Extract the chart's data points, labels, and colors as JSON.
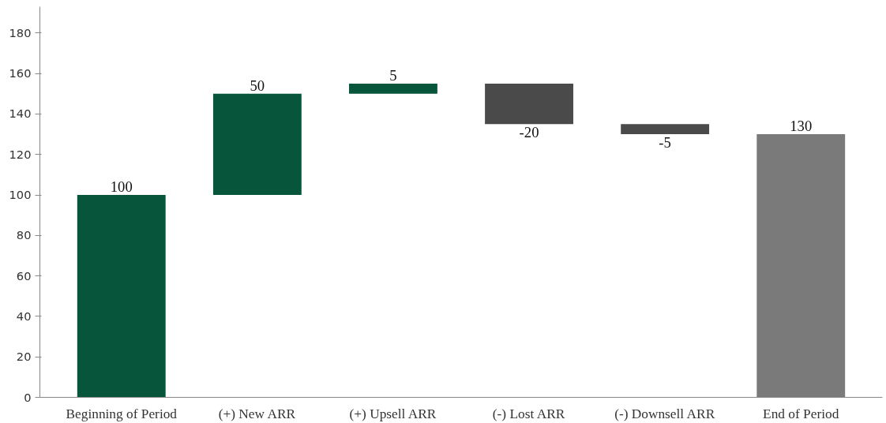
{
  "chart_data": {
    "type": "bar",
    "categories": [
      "Beginning of Period",
      "(+) New ARR",
      "(+) Upsell ARR",
      "(-) Lost ARR",
      "(-) Downsell ARR",
      "End of Period"
    ],
    "values": [
      100,
      50,
      5,
      -20,
      -5,
      130
    ],
    "base": [
      0,
      100,
      150,
      155,
      135,
      0
    ],
    "colors": [
      "#07553a",
      "#07553a",
      "#07553a",
      "#4a4a4a",
      "#4a4a4a",
      "#7a7a7a"
    ],
    "ylim": [
      0,
      193
    ],
    "yticks": [
      0,
      20,
      40,
      60,
      80,
      100,
      120,
      140,
      160,
      180
    ],
    "data_labels": true,
    "grid": false
  }
}
